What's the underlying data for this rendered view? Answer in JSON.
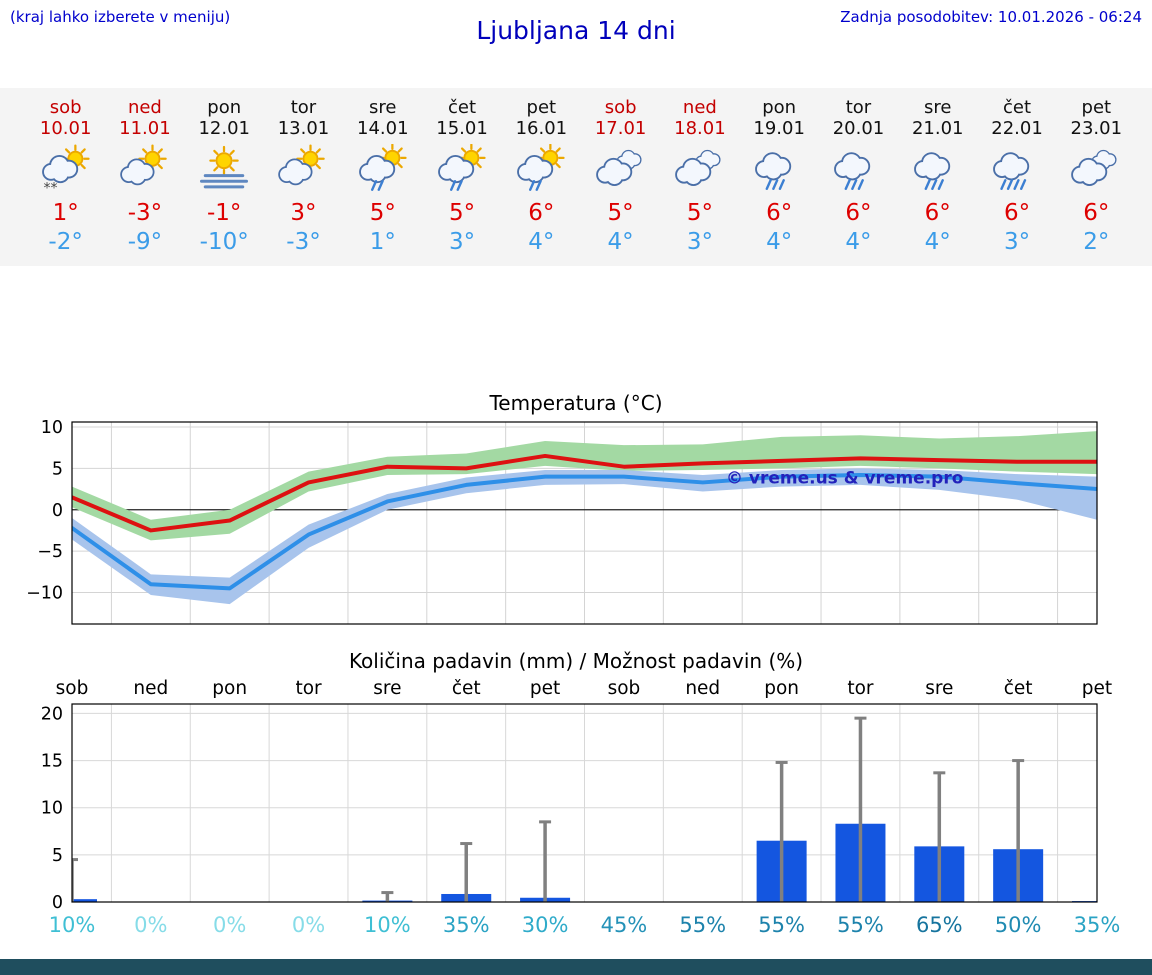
{
  "header": {
    "hint": "(kraj lahko izberete v meniju)",
    "title": "Ljubljana 14 dni",
    "updated": "Zadnja posodobitev: 10.01.2026 - 06:24",
    "accent_color": "#0000cc"
  },
  "colors": {
    "strip_bg": "#f4f4f4",
    "weekend_text": "#c40000",
    "high_temp": "#dd0000",
    "low_temp": "#3b9ce8",
    "footer": "#1f4e5e"
  },
  "days": [
    {
      "name": "sob",
      "date": "10.01",
      "weekend": true,
      "icon": "sun-cloud-snow",
      "high": "1°",
      "low": "-2°"
    },
    {
      "name": "ned",
      "date": "11.01",
      "weekend": true,
      "icon": "sun-cloud",
      "high": "-3°",
      "low": "-9°"
    },
    {
      "name": "pon",
      "date": "12.01",
      "weekend": false,
      "icon": "sun-fog",
      "high": "-1°",
      "low": "-10°"
    },
    {
      "name": "tor",
      "date": "13.01",
      "weekend": false,
      "icon": "sun-cloud",
      "high": "3°",
      "low": "-3°"
    },
    {
      "name": "sre",
      "date": "14.01",
      "weekend": false,
      "icon": "sun-cloud-rain",
      "high": "5°",
      "low": "1°"
    },
    {
      "name": "čet",
      "date": "15.01",
      "weekend": false,
      "icon": "sun-cloud-rain",
      "high": "5°",
      "low": "3°"
    },
    {
      "name": "pet",
      "date": "16.01",
      "weekend": false,
      "icon": "sun-cloud-rain",
      "high": "6°",
      "low": "4°"
    },
    {
      "name": "sob",
      "date": "17.01",
      "weekend": true,
      "icon": "cloudy",
      "high": "5°",
      "low": "4°"
    },
    {
      "name": "ned",
      "date": "18.01",
      "weekend": true,
      "icon": "cloudy",
      "high": "5°",
      "low": "3°"
    },
    {
      "name": "pon",
      "date": "19.01",
      "weekend": false,
      "icon": "cloud-rain",
      "high": "6°",
      "low": "4°"
    },
    {
      "name": "tor",
      "date": "20.01",
      "weekend": false,
      "icon": "cloud-rain",
      "high": "6°",
      "low": "4°"
    },
    {
      "name": "sre",
      "date": "21.01",
      "weekend": false,
      "icon": "cloud-rain",
      "high": "6°",
      "low": "4°"
    },
    {
      "name": "čet",
      "date": "22.01",
      "weekend": false,
      "icon": "cloud-heavy-rain",
      "high": "6°",
      "low": "3°"
    },
    {
      "name": "pet",
      "date": "23.01",
      "weendend": false,
      "icon": "cloudy",
      "high": "6°",
      "low": "2°"
    }
  ],
  "chart_data": [
    {
      "type": "line",
      "title": "Temperatura (°C)",
      "x_categories": [
        "sob",
        "ned",
        "pon",
        "tor",
        "sre",
        "čet",
        "pet",
        "sob",
        "ned",
        "pon",
        "tor",
        "sre",
        "čet",
        "pet"
      ],
      "ylim": [
        -13.8,
        10.6
      ],
      "yticks": [
        {
          "v": 10,
          "label": "10"
        },
        {
          "v": 5,
          "label": "5"
        },
        {
          "v": 0,
          "label": "0"
        },
        {
          "v": -5,
          "label": "−5"
        },
        {
          "v": -10,
          "label": "−10"
        }
      ],
      "grid": true,
      "legend_position": "none",
      "watermark": {
        "text": "© vreme.us & vreme.pro",
        "color": "#2222bb",
        "x_index": 9.8,
        "y_value": 3.2
      },
      "series": [
        {
          "name": "max-temp",
          "color": "#dd1111",
          "band_color": "#a3d9a3",
          "values": [
            1.5,
            -2.5,
            -1.3,
            3.3,
            5.2,
            5.0,
            6.5,
            5.2,
            5.6,
            5.9,
            6.2,
            6.0,
            5.8,
            5.8
          ],
          "band_high": [
            2.8,
            -1.2,
            0.0,
            4.6,
            6.4,
            6.8,
            8.3,
            7.8,
            7.9,
            8.8,
            9.0,
            8.6,
            8.9,
            9.5
          ],
          "band_low": [
            0.3,
            -3.7,
            -2.9,
            2.2,
            4.2,
            4.3,
            5.3,
            4.7,
            4.8,
            5.0,
            5.3,
            5.0,
            4.6,
            4.3
          ]
        },
        {
          "name": "min-temp",
          "color": "#2e8fe8",
          "band_color": "#a8c4ec",
          "values": [
            -2.2,
            -9.0,
            -9.5,
            -3.0,
            1.0,
            3.0,
            4.0,
            4.0,
            3.3,
            4.0,
            4.2,
            4.0,
            3.2,
            2.5
          ],
          "band_high": [
            -1.0,
            -7.8,
            -8.2,
            -1.8,
            1.9,
            3.9,
            4.8,
            4.8,
            4.2,
            4.8,
            5.0,
            4.8,
            4.3,
            4.0
          ],
          "band_low": [
            -3.6,
            -10.3,
            -11.4,
            -4.6,
            0.0,
            2.0,
            3.0,
            3.1,
            2.2,
            2.8,
            3.0,
            2.4,
            1.2,
            -1.2
          ]
        }
      ]
    },
    {
      "type": "bar",
      "title": "Količina padavin (mm) / Možnost padavin (%)",
      "categories": [
        "sob",
        "ned",
        "pon",
        "tor",
        "sre",
        "čet",
        "pet",
        "sob",
        "ned",
        "pon",
        "tor",
        "sre",
        "čet",
        "pet"
      ],
      "ylim": [
        0,
        21
      ],
      "yticks": [
        {
          "v": 0,
          "label": "0"
        },
        {
          "v": 5,
          "label": "5"
        },
        {
          "v": 10,
          "label": "10"
        },
        {
          "v": 15,
          "label": "15"
        },
        {
          "v": 20,
          "label": "20"
        }
      ],
      "bar_color": "#1456e0",
      "whisker_color": "#808080",
      "values": [
        0.3,
        0,
        0,
        0,
        0.15,
        0.85,
        0.45,
        0,
        0,
        6.5,
        8.3,
        5.9,
        5.6,
        0.1
      ],
      "whiskers": [
        4.5,
        0,
        0,
        0,
        1.0,
        6.2,
        8.5,
        0,
        0,
        14.8,
        19.5,
        13.7,
        15.0,
        0
      ],
      "probabilities": [
        {
          "label": "10%",
          "color": "#3fbfd4"
        },
        {
          "label": "0%",
          "color": "#86dce8"
        },
        {
          "label": "0%",
          "color": "#86dce8"
        },
        {
          "label": "0%",
          "color": "#86dce8"
        },
        {
          "label": "10%",
          "color": "#3fbfd4"
        },
        {
          "label": "35%",
          "color": "#2aa3c4"
        },
        {
          "label": "30%",
          "color": "#2fabca"
        },
        {
          "label": "45%",
          "color": "#2492b8"
        },
        {
          "label": "55%",
          "color": "#1d83ac"
        },
        {
          "label": "55%",
          "color": "#1d83ac"
        },
        {
          "label": "55%",
          "color": "#1d83ac"
        },
        {
          "label": "65%",
          "color": "#16749e"
        },
        {
          "label": "50%",
          "color": "#208bb2"
        },
        {
          "label": "35%",
          "color": "#2aa3c4"
        }
      ]
    }
  ]
}
